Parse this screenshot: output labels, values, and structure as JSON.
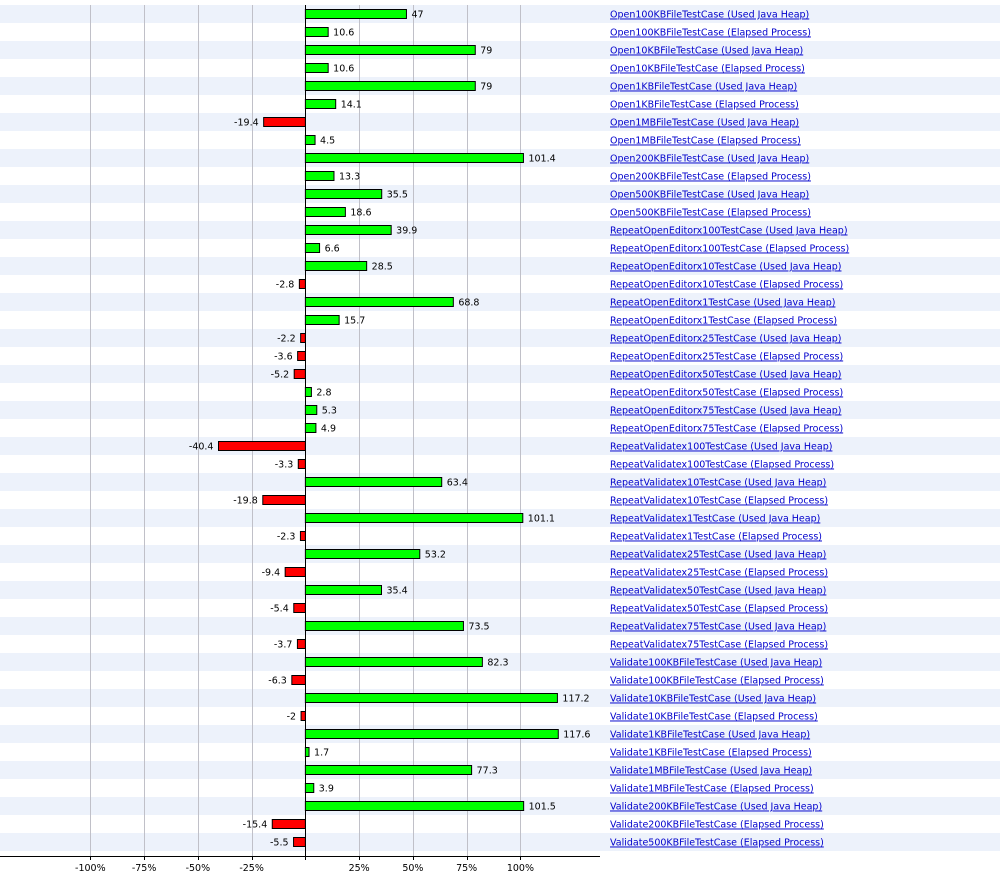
{
  "chart_data": {
    "type": "bar",
    "orientation": "horizontal",
    "xlim": [
      -142,
      137
    ],
    "x_ticks": [
      {
        "value": -100,
        "label": "-100%"
      },
      {
        "value": -75,
        "label": "-75%"
      },
      {
        "value": -50,
        "label": "-50%"
      },
      {
        "value": -25,
        "label": "-25%"
      },
      {
        "value": 0,
        "label": ""
      },
      {
        "value": 25,
        "label": "25%"
      },
      {
        "value": 50,
        "label": "50%"
      },
      {
        "value": 75,
        "label": "75%"
      },
      {
        "value": 100,
        "label": "100%"
      }
    ],
    "grid": true,
    "categories": [
      "Open100KBFileTestCase (Used Java Heap)",
      "Open100KBFileTestCase (Elapsed Process)",
      "Open10KBFileTestCase (Used Java Heap)",
      "Open10KBFileTestCase (Elapsed Process)",
      "Open1KBFileTestCase (Used Java Heap)",
      "Open1KBFileTestCase (Elapsed Process)",
      "Open1MBFileTestCase (Used Java Heap)",
      "Open1MBFileTestCase (Elapsed Process)",
      "Open200KBFileTestCase (Used Java Heap)",
      "Open200KBFileTestCase (Elapsed Process)",
      "Open500KBFileTestCase (Used Java Heap)",
      "Open500KBFileTestCase (Elapsed Process)",
      "RepeatOpenEditorx100TestCase (Used Java Heap)",
      "RepeatOpenEditorx100TestCase (Elapsed Process)",
      "RepeatOpenEditorx10TestCase (Used Java Heap)",
      "RepeatOpenEditorx10TestCase (Elapsed Process)",
      "RepeatOpenEditorx1TestCase (Used Java Heap)",
      "RepeatOpenEditorx1TestCase (Elapsed Process)",
      "RepeatOpenEditorx25TestCase (Used Java Heap)",
      "RepeatOpenEditorx25TestCase (Elapsed Process)",
      "RepeatOpenEditorx50TestCase (Used Java Heap)",
      "RepeatOpenEditorx50TestCase (Elapsed Process)",
      "RepeatOpenEditorx75TestCase (Used Java Heap)",
      "RepeatOpenEditorx75TestCase (Elapsed Process)",
      "RepeatValidatex100TestCase (Used Java Heap)",
      "RepeatValidatex100TestCase (Elapsed Process)",
      "RepeatValidatex10TestCase (Used Java Heap)",
      "RepeatValidatex10TestCase (Elapsed Process)",
      "RepeatValidatex1TestCase (Used Java Heap)",
      "RepeatValidatex1TestCase (Elapsed Process)",
      "RepeatValidatex25TestCase (Used Java Heap)",
      "RepeatValidatex25TestCase (Elapsed Process)",
      "RepeatValidatex50TestCase (Used Java Heap)",
      "RepeatValidatex50TestCase (Elapsed Process)",
      "RepeatValidatex75TestCase (Used Java Heap)",
      "RepeatValidatex75TestCase (Elapsed Process)",
      "Validate100KBFileTestCase (Used Java Heap)",
      "Validate100KBFileTestCase (Elapsed Process)",
      "Validate10KBFileTestCase (Used Java Heap)",
      "Validate10KBFileTestCase (Elapsed Process)",
      "Validate1KBFileTestCase (Used Java Heap)",
      "Validate1KBFileTestCase (Elapsed Process)",
      "Validate1MBFileTestCase (Used Java Heap)",
      "Validate1MBFileTestCase (Elapsed Process)",
      "Validate200KBFileTestCase (Used Java Heap)",
      "Validate200KBFileTestCase (Elapsed Process)",
      "Validate500KBFileTestCase (Elapsed Process)"
    ],
    "values": [
      47,
      10.6,
      79,
      10.6,
      79,
      14.1,
      -19.4,
      4.5,
      101.4,
      13.3,
      35.5,
      18.6,
      39.9,
      6.6,
      28.5,
      -2.8,
      68.8,
      15.7,
      -2.2,
      -3.6,
      -5.2,
      2.8,
      5.3,
      4.9,
      -40.4,
      -3.3,
      63.4,
      -19.8,
      101.1,
      -2.3,
      53.2,
      -9.4,
      35.4,
      -5.4,
      73.5,
      -3.7,
      82.3,
      -6.3,
      117.2,
      -2,
      117.6,
      1.7,
      77.3,
      3.9,
      101.5,
      -15.4,
      -5.5
    ],
    "labels": [
      "47",
      "10.6",
      "79",
      "10.6",
      "79",
      "14.1",
      "-19.4",
      "4.5",
      "101.4",
      "13.3",
      "35.5",
      "18.6",
      "39.9",
      "6.6",
      "28.5",
      "-2.8",
      "68.8",
      "15.7",
      "-2.2",
      "-3.6",
      "-5.2",
      "2.8",
      "5.3",
      "4.9",
      "-40.4",
      "-3.3",
      "63.4",
      "-19.8",
      "101.1",
      "-2.3",
      "53.2",
      "-9.4",
      "35.4",
      "-5.4",
      "73.5",
      "-3.7",
      "82.3",
      "-6.3",
      "117.2",
      "-2",
      "117.6",
      "1.7",
      "77.3",
      "3.9",
      "101.5",
      "-15.4",
      "-5.5"
    ]
  },
  "colors": {
    "positive_bar": "#00ff00",
    "negative_bar": "#ff0000",
    "bar_outline": "#000000",
    "row_stripe": "#edf2fb",
    "grid": "#c0c0c8",
    "link": "#0000cc"
  }
}
